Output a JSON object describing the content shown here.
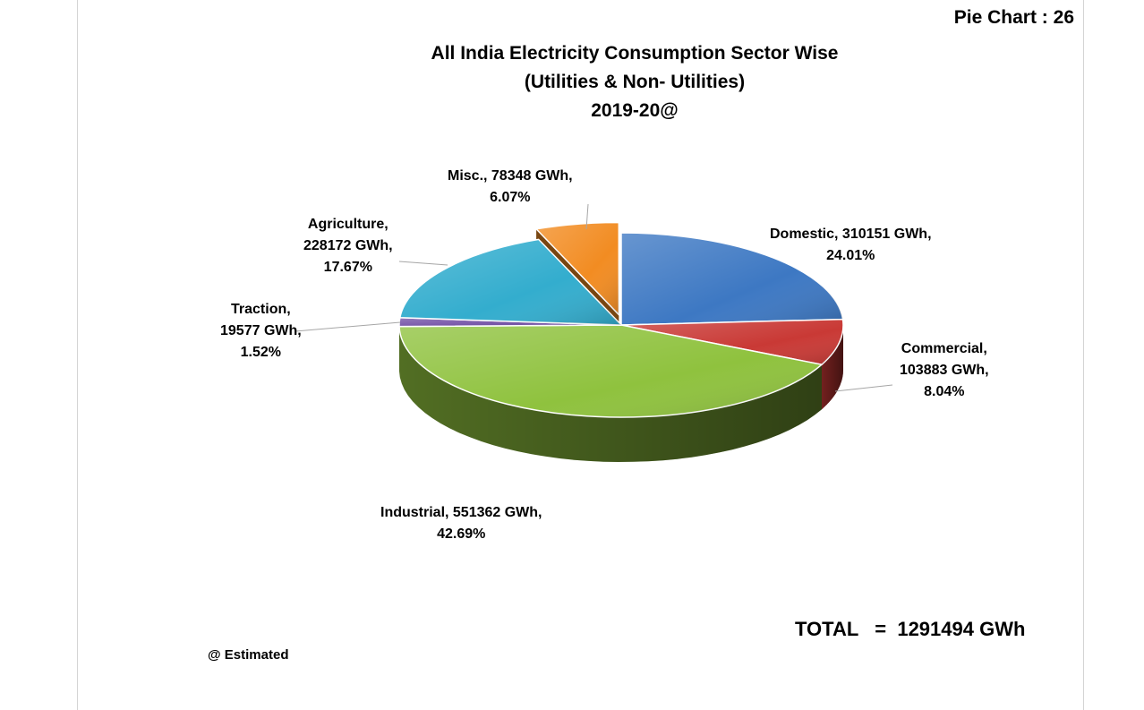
{
  "page": {
    "chart_number": "Pie Chart : 26",
    "total_label": "TOTAL",
    "total_sep": "=",
    "total_value": "1291494 GWh",
    "footnote": "@ Estimated"
  },
  "chart_data": {
    "type": "pie",
    "title": "All India Electricity Consumption Sector Wise",
    "subtitle": "(Utilities & Non- Utilities)",
    "period": "2019-20@",
    "unit": "GWh",
    "three_d": true,
    "slices": [
      {
        "name": "Domestic",
        "value": 310151,
        "percent": 24.01,
        "color": "#3d78c3",
        "exploded": false,
        "label": [
          "Domestic, 310151 GWh,",
          "24.01%"
        ]
      },
      {
        "name": "Commercial",
        "value": 103883,
        "percent": 8.04,
        "color": "#c93935",
        "exploded": false,
        "label": [
          "Commercial,",
          "103883 GWh,",
          "8.04%"
        ]
      },
      {
        "name": "Industrial",
        "value": 551362,
        "percent": 42.69,
        "color": "#8fc23e",
        "exploded": false,
        "label": [
          "Industrial, 551362 GWh,",
          "42.69%"
        ]
      },
      {
        "name": "Traction",
        "value": 19577,
        "percent": 1.52,
        "color": "#7655a8",
        "exploded": false,
        "label": [
          "Traction,",
          "19577 GWh,",
          "1.52%"
        ]
      },
      {
        "name": "Agriculture",
        "value": 228172,
        "percent": 17.67,
        "color": "#33adce",
        "exploded": false,
        "label": [
          "Agriculture,",
          "228172 GWh,",
          "17.67%"
        ]
      },
      {
        "name": "Misc.",
        "value": 78348,
        "percent": 6.07,
        "color": "#f28c22",
        "exploded": true,
        "label": [
          "Misc., 78348 GWh,",
          "6.07%"
        ]
      }
    ]
  }
}
